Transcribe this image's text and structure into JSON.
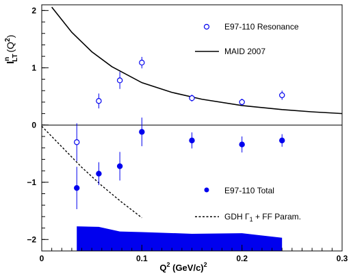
{
  "chart_data": {
    "type": "scatter",
    "xlabel": "Q² (GeV/c)²",
    "ylabel": "Iⁿ_LT (Q²)",
    "xlim": [
      0,
      0.3
    ],
    "ylim": [
      -2.2,
      2.1
    ],
    "x_ticks": [
      0,
      0.1,
      0.2,
      0.3
    ],
    "x_tick_labels": [
      "0",
      "0.1",
      "0.2",
      "0.3"
    ],
    "y_ticks": [
      -2,
      -1,
      0,
      1,
      2
    ],
    "y_tick_labels": [
      "−2",
      "−1",
      "0",
      "1",
      "2"
    ],
    "zero_line": true,
    "grid": false,
    "legend_placement": "inside, top-right and lower-right",
    "colors": {
      "data": "#0000ee",
      "model": "#000000",
      "band": "#0000ee"
    },
    "series": [
      {
        "name": "E97-110 Resonance",
        "marker": "open-circle",
        "x": [
          0.035,
          0.057,
          0.078,
          0.1,
          0.15,
          0.2,
          0.24
        ],
        "y": [
          -0.3,
          0.42,
          0.78,
          1.09,
          0.47,
          0.4,
          0.52
        ],
        "err": [
          0.33,
          0.13,
          0.15,
          0.1,
          0.06,
          0.06,
          0.08
        ]
      },
      {
        "name": "E97-110 Total",
        "marker": "filled-circle",
        "x": [
          0.035,
          0.057,
          0.078,
          0.1,
          0.15,
          0.2,
          0.24
        ],
        "y": [
          -1.1,
          -0.85,
          -0.72,
          -0.12,
          -0.27,
          -0.34,
          -0.27
        ],
        "err": [
          0.37,
          0.2,
          0.25,
          0.25,
          0.14,
          0.14,
          0.11
        ]
      },
      {
        "name": "MAID 2007",
        "style": "solid-line",
        "x": [
          0.01,
          0.03,
          0.05,
          0.07,
          0.1,
          0.13,
          0.16,
          0.2,
          0.24,
          0.27,
          0.3
        ],
        "y": [
          2.06,
          1.62,
          1.28,
          1.02,
          0.74,
          0.57,
          0.45,
          0.34,
          0.27,
          0.23,
          0.2
        ]
      },
      {
        "name": "GDH Γ₁ + FF Param.",
        "style": "dashed-line",
        "x": [
          0.0,
          0.02,
          0.04,
          0.06,
          0.08,
          0.1
        ],
        "y": [
          -0.02,
          -0.38,
          -0.74,
          -1.06,
          -1.35,
          -1.62
        ]
      },
      {
        "name": "systematic band",
        "style": "filled-band",
        "x": [
          0.035,
          0.057,
          0.078,
          0.1,
          0.15,
          0.2,
          0.24
        ],
        "top": [
          -1.77,
          -1.78,
          -1.86,
          -1.87,
          -1.9,
          -1.89,
          -1.97
        ],
        "bottom": [
          -2.2,
          -2.2,
          -2.2,
          -2.2,
          -2.2,
          -2.2,
          -2.2
        ]
      }
    ]
  },
  "labels": {
    "y_main": "I",
    "y_sup": "n",
    "y_sub": "LT",
    "y_arg": "(Q",
    "y_arg_sup": "2",
    "y_arg_close": ")",
    "x_main": "Q",
    "x_sup": "2",
    "x_units": " (GeV/c)",
    "x_units_sup": "2",
    "legend_resonance": "E97-110 Resonance",
    "legend_maid": "MAID 2007",
    "legend_total": "E97-110 Total",
    "legend_gdh_main": "GDH Γ",
    "legend_gdh_sub": "1",
    "legend_gdh_rest": " + FF Param."
  }
}
